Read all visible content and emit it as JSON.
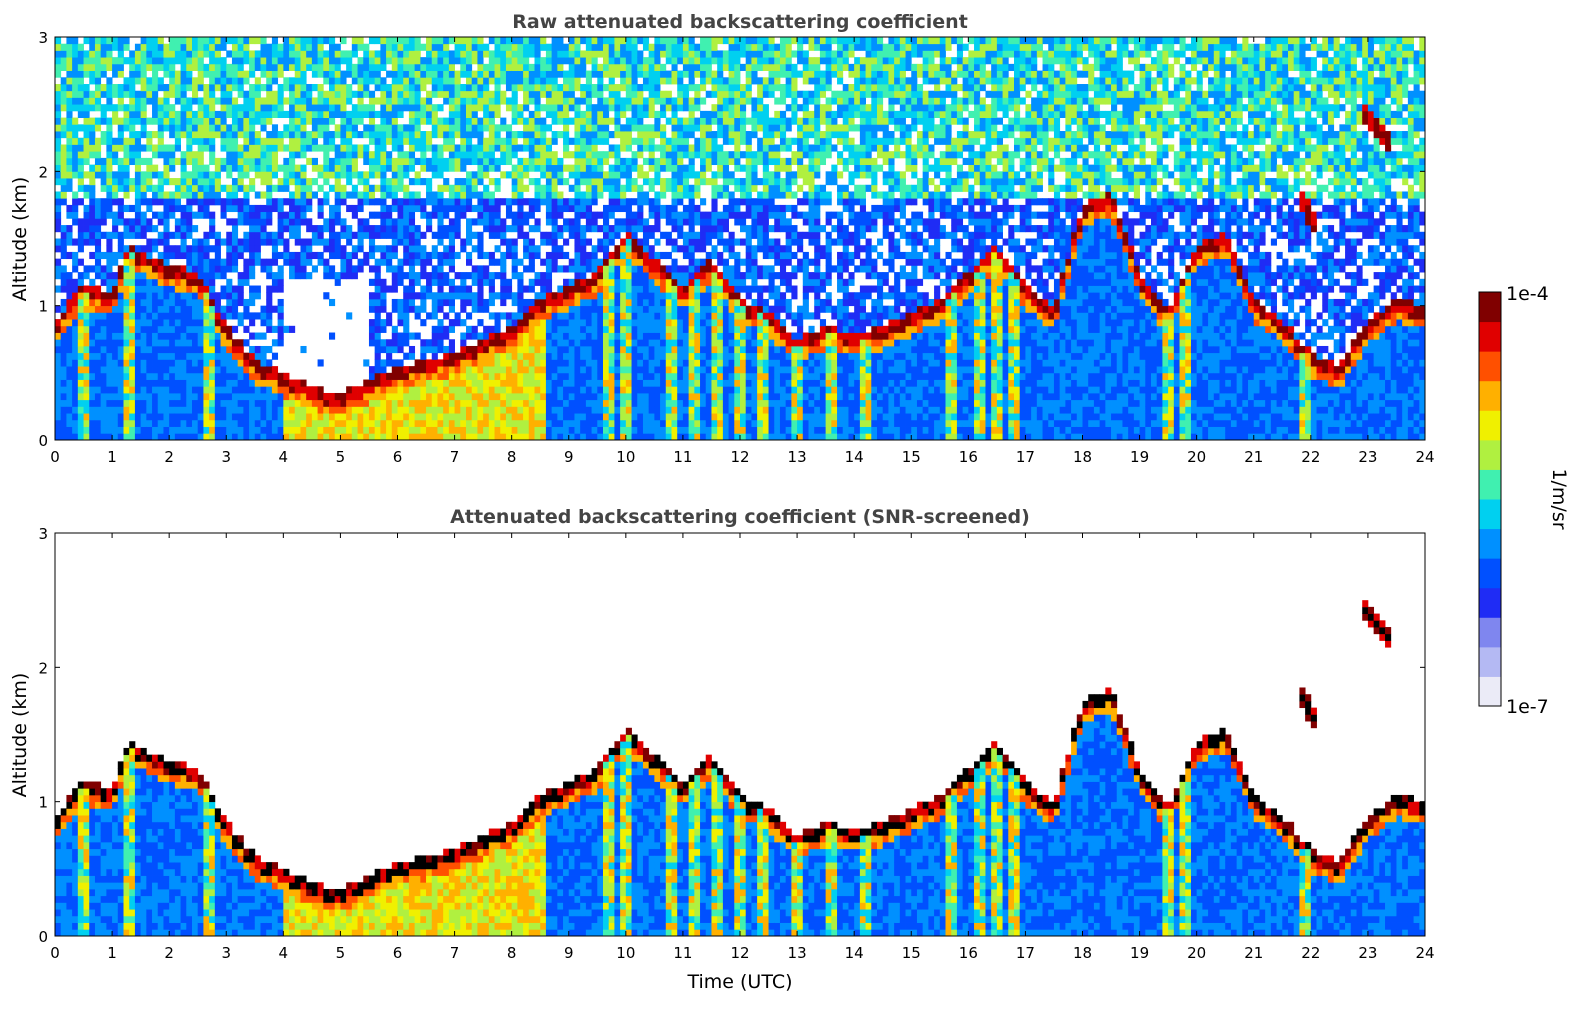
{
  "chart_data": [
    {
      "type": "heatmap",
      "title": "Raw attenuated backscattering coefficient",
      "xlabel": "",
      "ylabel": "Altitude (km)",
      "xlim": [
        0,
        24
      ],
      "ylim": [
        0,
        3
      ],
      "x_ticks": [
        "0",
        "1",
        "2",
        "3",
        "4",
        "5",
        "6",
        "7",
        "8",
        "9",
        "10",
        "11",
        "12",
        "13",
        "14",
        "15",
        "16",
        "17",
        "18",
        "19",
        "20",
        "21",
        "22",
        "23",
        "24"
      ],
      "y_ticks": [
        "0",
        "1",
        "2",
        "3"
      ],
      "screened": false,
      "features": {
        "boundary_layer_top": [
          [
            0,
            0.85
          ],
          [
            0.5,
            1.1
          ],
          [
            1,
            1.05
          ],
          [
            1.3,
            1.4
          ],
          [
            2,
            1.25
          ],
          [
            2.5,
            1.2
          ],
          [
            3,
            0.8
          ],
          [
            3.5,
            0.55
          ],
          [
            4,
            0.45
          ],
          [
            4.5,
            0.35
          ],
          [
            5,
            0.3
          ],
          [
            5.5,
            0.4
          ],
          [
            6,
            0.5
          ],
          [
            6.5,
            0.55
          ],
          [
            7,
            0.6
          ],
          [
            7.5,
            0.7
          ],
          [
            8,
            0.8
          ],
          [
            8.5,
            1.0
          ],
          [
            9,
            1.1
          ],
          [
            9.5,
            1.2
          ],
          [
            10,
            1.5
          ],
          [
            10.5,
            1.3
          ],
          [
            11,
            1.1
          ],
          [
            11.5,
            1.3
          ],
          [
            12,
            1.0
          ],
          [
            12.5,
            0.9
          ],
          [
            13,
            0.7
          ],
          [
            13.5,
            0.8
          ],
          [
            14,
            0.75
          ],
          [
            14.5,
            0.8
          ],
          [
            15,
            0.9
          ],
          [
            15.5,
            1.0
          ],
          [
            16,
            1.2
          ],
          [
            16.5,
            1.4
          ],
          [
            17,
            1.1
          ],
          [
            17.5,
            0.95
          ],
          [
            18,
            1.7
          ],
          [
            18.5,
            1.8
          ],
          [
            19,
            1.2
          ],
          [
            19.5,
            0.9
          ],
          [
            20,
            1.4
          ],
          [
            20.5,
            1.5
          ],
          [
            21,
            1.0
          ],
          [
            21.5,
            0.85
          ],
          [
            22,
            0.6
          ],
          [
            22.5,
            0.5
          ],
          [
            23,
            0.85
          ],
          [
            23.5,
            1.0
          ],
          [
            24,
            0.95
          ]
        ],
        "elevated_layers": [
          [
            22.9,
            2.45,
            23.4,
            2.2
          ],
          [
            21.8,
            1.8,
            22.1,
            1.6
          ]
        ],
        "precip_columns": [
          0.5,
          1.3,
          2.7,
          9.7,
          10.0,
          10.8,
          11.2,
          11.6,
          12.0,
          12.4,
          13.0,
          13.6,
          14.2,
          15.7,
          16.2,
          16.5,
          16.8,
          19.5,
          19.8,
          21.9
        ]
      }
    },
    {
      "type": "heatmap",
      "title": "Attenuated backscattering coefficient (SNR-screened)",
      "xlabel": "Time (UTC)",
      "ylabel": "Altitude (km)",
      "xlim": [
        0,
        24
      ],
      "ylim": [
        0,
        3
      ],
      "x_ticks": [
        "0",
        "1",
        "2",
        "3",
        "4",
        "5",
        "6",
        "7",
        "8",
        "9",
        "10",
        "11",
        "12",
        "13",
        "14",
        "15",
        "16",
        "17",
        "18",
        "19",
        "20",
        "21",
        "22",
        "23",
        "24"
      ],
      "y_ticks": [
        "0",
        "1",
        "2",
        "3"
      ],
      "screened": true
    }
  ],
  "colorbar": {
    "label": "1/m/sr",
    "max_label": "1e-4",
    "min_label": "1e-7",
    "colors": [
      "#ebebf7",
      "#b4b9f3",
      "#7f86ef",
      "#1f2cf5",
      "#0050ff",
      "#0090ff",
      "#00d0f0",
      "#40f0b0",
      "#b0f040",
      "#f0f000",
      "#ffb000",
      "#ff5000",
      "#e00000",
      "#800000"
    ]
  }
}
